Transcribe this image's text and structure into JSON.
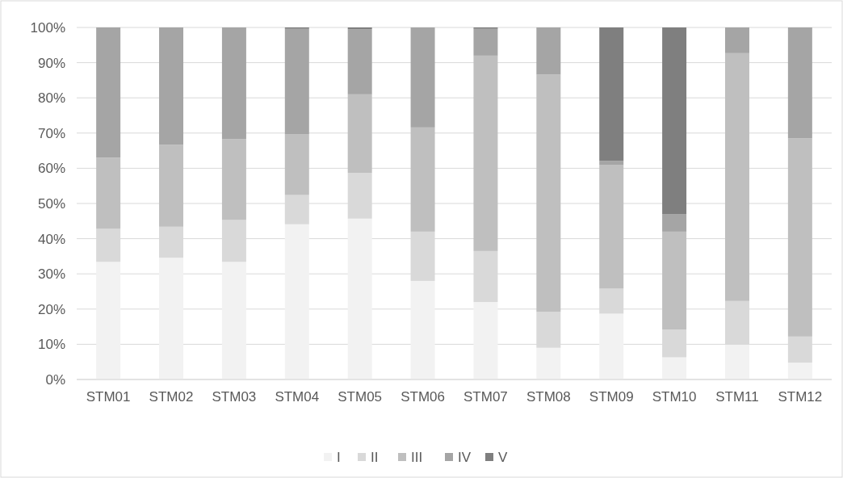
{
  "chart_data": {
    "type": "bar",
    "stacked": true,
    "categories": [
      "STM01",
      "STM02",
      "STM03",
      "STM04",
      "STM05",
      "STM06",
      "STM07",
      "STM08",
      "STM09",
      "STM10",
      "STM11",
      "STM12"
    ],
    "series": [
      {
        "name": "I",
        "color": "#f2f2f2",
        "values": [
          33.4,
          34.6,
          33.4,
          44.1,
          45.7,
          28,
          22,
          9,
          18.7,
          6.3,
          9.9,
          4.8
        ]
      },
      {
        "name": "II",
        "color": "#d9d9d9",
        "values": [
          9.4,
          8.8,
          11.9,
          8.3,
          13,
          14,
          14.5,
          10.2,
          7.1,
          7.9,
          12.4,
          7.4
        ]
      },
      {
        "name": "III",
        "color": "#bfbfbf",
        "values": [
          20.2,
          23.3,
          23,
          17.2,
          22.3,
          29.6,
          55.5,
          67.4,
          35.2,
          27.8,
          70.4,
          56.3
        ]
      },
      {
        "name": "IV",
        "color": "#a5a5a5",
        "values": [
          37,
          33.3,
          31.7,
          30,
          18.5,
          28.4,
          7.6,
          13.4,
          1.1,
          5,
          7.3,
          31.5
        ]
      },
      {
        "name": "V",
        "color": "#7f7f7f",
        "values": [
          0,
          0,
          0,
          0.4,
          0.5,
          0,
          0.4,
          0,
          37.9,
          53,
          0,
          0
        ]
      }
    ],
    "ylim": [
      0,
      100
    ],
    "yticks": [
      {
        "value": 0,
        "label": "0%"
      },
      {
        "value": 10,
        "label": "10%"
      },
      {
        "value": 20,
        "label": "20%"
      },
      {
        "value": 30,
        "label": "30%"
      },
      {
        "value": 40,
        "label": "40%"
      },
      {
        "value": 50,
        "label": "50%"
      },
      {
        "value": 60,
        "label": "60%"
      },
      {
        "value": 70,
        "label": "70%"
      },
      {
        "value": 80,
        "label": "80%"
      },
      {
        "value": 90,
        "label": "90%"
      },
      {
        "value": 100,
        "label": "100%"
      }
    ],
    "grid": "y",
    "legend": "bottom"
  }
}
